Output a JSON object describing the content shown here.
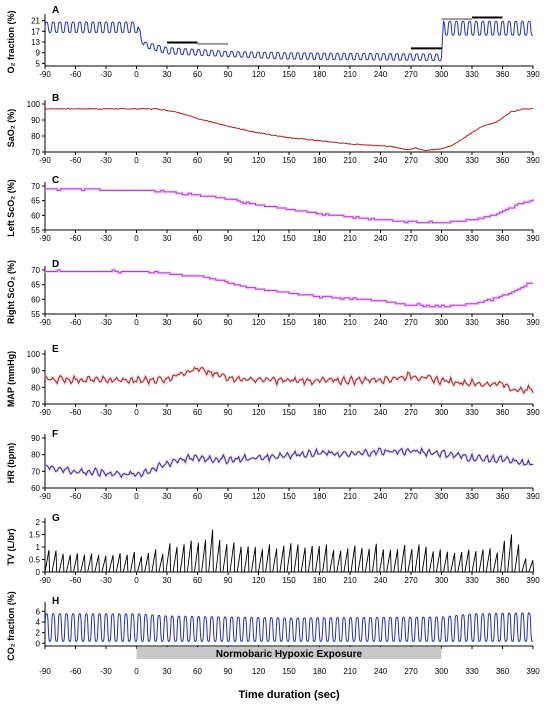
{
  "x_axis": {
    "label": "Time duration (sec)",
    "range": [
      -90,
      390
    ],
    "ticks": [
      -90,
      -60,
      -30,
      0,
      30,
      60,
      90,
      120,
      150,
      180,
      210,
      240,
      270,
      300,
      330,
      360,
      390
    ]
  },
  "exposure": {
    "label": "Normobaric Hypoxic Exposure",
    "start": 0,
    "end": 300,
    "color": "#c8c8c8"
  },
  "chart_data": [
    {
      "panel": "A",
      "type": "line",
      "ylabel": "O₂ fraction (%)",
      "color": "#1f2fbf",
      "ylim": [
        4,
        22
      ],
      "yticks": [
        5,
        9,
        13,
        17,
        21
      ],
      "series": [
        {
          "style": "oscillating",
          "period": 6.5,
          "peaks": [
            [
              -90,
              20.5
            ],
            [
              0,
              20.5
            ],
            [
              8,
              13
            ],
            [
              30,
              11
            ],
            [
              90,
              9.5
            ],
            [
              150,
              9
            ],
            [
              300,
              8.5
            ],
            [
              302,
              20.8
            ],
            [
              390,
              20.8
            ]
          ],
          "troughs": [
            [
              -90,
              16.5
            ],
            [
              0,
              16.5
            ],
            [
              8,
              11
            ],
            [
              30,
              8.5
            ],
            [
              90,
              7.5
            ],
            [
              150,
              6.5
            ],
            [
              300,
              6
            ],
            [
              302,
              15.5
            ],
            [
              390,
              15.5
            ]
          ]
        }
      ],
      "markers": [
        {
          "x": [
            30,
            60
          ],
          "y": 12.8,
          "color": "#000000"
        },
        {
          "x": [
            60,
            90
          ],
          "y": 12.3,
          "color": "#999999"
        },
        {
          "x": [
            270,
            300
          ],
          "y": 10.6,
          "color": "#000000"
        },
        {
          "x": [
            300,
            330
          ],
          "y": 21.6,
          "color": "#999999"
        },
        {
          "x": [
            330,
            360
          ],
          "y": 22.2,
          "color": "#000000"
        }
      ]
    },
    {
      "panel": "B",
      "type": "line",
      "ylabel": "SaO₂ (%)",
      "color": "#b22222",
      "ylim": [
        70,
        100
      ],
      "yticks": [
        70,
        80,
        90,
        100
      ],
      "series": [
        {
          "style": "smooth",
          "points": [
            [
              -90,
              97
            ],
            [
              0,
              97
            ],
            [
              20,
              97
            ],
            [
              40,
              95
            ],
            [
              60,
              91
            ],
            [
              90,
              86
            ],
            [
              120,
              82
            ],
            [
              150,
              79
            ],
            [
              180,
              77
            ],
            [
              210,
              75
            ],
            [
              240,
              74
            ],
            [
              255,
              73
            ],
            [
              265,
              71.5
            ],
            [
              275,
              72.5
            ],
            [
              285,
              71
            ],
            [
              300,
              72
            ],
            [
              310,
              74
            ],
            [
              325,
              80
            ],
            [
              340,
              86
            ],
            [
              355,
              89
            ],
            [
              368,
              95
            ],
            [
              380,
              97
            ],
            [
              390,
              97
            ]
          ]
        }
      ]
    },
    {
      "panel": "C",
      "type": "line",
      "ylabel": "Left ScO₂ (%)",
      "color": "#b038e0",
      "ylim": [
        55,
        70
      ],
      "yticks": [
        55,
        60,
        65,
        70
      ],
      "series": [
        {
          "style": "step",
          "points": [
            [
              -90,
              69
            ],
            [
              0,
              68.6
            ],
            [
              30,
              68
            ],
            [
              60,
              67
            ],
            [
              90,
              65.5
            ],
            [
              120,
              63.5
            ],
            [
              150,
              62
            ],
            [
              180,
              60.5
            ],
            [
              210,
              59.5
            ],
            [
              240,
              58.5
            ],
            [
              270,
              57.8
            ],
            [
              300,
              57.5
            ],
            [
              330,
              58.5
            ],
            [
              350,
              60
            ],
            [
              360,
              61.5
            ],
            [
              375,
              64
            ],
            [
              390,
              65
            ]
          ]
        }
      ]
    },
    {
      "panel": "D",
      "type": "line",
      "ylabel": "Right ScO₂ (%)",
      "color": "#b038e0",
      "ylim": [
        55,
        70
      ],
      "yticks": [
        55,
        60,
        65,
        70
      ],
      "series": [
        {
          "style": "step",
          "points": [
            [
              -90,
              69.5
            ],
            [
              0,
              69.5
            ],
            [
              30,
              68.8
            ],
            [
              60,
              68
            ],
            [
              90,
              65.5
            ],
            [
              120,
              63.5
            ],
            [
              150,
              62
            ],
            [
              180,
              61
            ],
            [
              210,
              60.2
            ],
            [
              240,
              59.5
            ],
            [
              270,
              58
            ],
            [
              300,
              57.5
            ],
            [
              330,
              58.5
            ],
            [
              350,
              60
            ],
            [
              365,
              62
            ],
            [
              380,
              64.5
            ],
            [
              390,
              66
            ]
          ]
        }
      ]
    },
    {
      "panel": "E",
      "type": "line",
      "ylabel": "MAP (mmHg)",
      "color": "#a02828",
      "ylim": [
        70,
        100
      ],
      "yticks": [
        70,
        80,
        90,
        100
      ],
      "series": [
        {
          "style": "noisy",
          "points": [
            [
              -90,
              85
            ],
            [
              0,
              84
            ],
            [
              30,
              85
            ],
            [
              45,
              89
            ],
            [
              60,
              91
            ],
            [
              75,
              88
            ],
            [
              100,
              85
            ],
            [
              150,
              84
            ],
            [
              200,
              84
            ],
            [
              250,
              85
            ],
            [
              270,
              87
            ],
            [
              300,
              84
            ],
            [
              340,
              82
            ],
            [
              360,
              82
            ],
            [
              375,
              78
            ],
            [
              390,
              79
            ]
          ]
        }
      ]
    },
    {
      "panel": "F",
      "type": "line",
      "ylabel": "HR (bpm)",
      "color": "#1f2fbf",
      "ylim": [
        60,
        90
      ],
      "yticks": [
        60,
        70,
        80,
        90
      ],
      "series": [
        {
          "style": "noisy",
          "points": [
            [
              -90,
              73
            ],
            [
              -60,
              70
            ],
            [
              -30,
              69
            ],
            [
              0,
              68
            ],
            [
              20,
              72
            ],
            [
              40,
              77
            ],
            [
              60,
              78
            ],
            [
              90,
              77
            ],
            [
              120,
              78
            ],
            [
              150,
              80
            ],
            [
              180,
              81
            ],
            [
              210,
              80
            ],
            [
              240,
              82
            ],
            [
              270,
              82
            ],
            [
              300,
              81
            ],
            [
              330,
              78
            ],
            [
              360,
              77
            ],
            [
              390,
              74
            ]
          ]
        }
      ]
    },
    {
      "panel": "G",
      "type": "line",
      "ylabel": "TV (L/br)",
      "color": "#000000",
      "ylim": [
        0,
        2.0
      ],
      "yticks": [
        0,
        0.5,
        1.0,
        1.5,
        2.0
      ],
      "series": [
        {
          "style": "pulses",
          "period": 7,
          "peak_points": [
            [
              -90,
              0.8
            ],
            [
              0,
              0.7
            ],
            [
              30,
              0.9
            ],
            [
              60,
              1.2
            ],
            [
              90,
              1.1
            ],
            [
              150,
              1.0
            ],
            [
              210,
              1.0
            ],
            [
              270,
              1.0
            ],
            [
              300,
              0.9
            ],
            [
              330,
              0.8
            ],
            [
              360,
              0.9
            ],
            [
              380,
              0.5
            ],
            [
              390,
              0.5
            ]
          ],
          "spikes": [
            [
              30,
              1.15
            ],
            [
              68,
              1.7
            ],
            [
              356,
              1.25
            ],
            [
              362,
              1.5
            ],
            [
              370,
              1.1
            ]
          ]
        }
      ]
    },
    {
      "panel": "H",
      "type": "line",
      "ylabel": "CO₂ fraction (%)",
      "color": "#1f2fbf",
      "ylim": [
        -0.5,
        7
      ],
      "yticks": [
        0,
        2,
        4,
        6
      ],
      "series": [
        {
          "style": "oscillating",
          "period": 6.5,
          "peaks": [
            [
              -90,
              5.6
            ],
            [
              0,
              5.6
            ],
            [
              30,
              5.2
            ],
            [
              150,
              4.8
            ],
            [
              300,
              5.0
            ],
            [
              330,
              5.6
            ],
            [
              390,
              5.8
            ]
          ],
          "troughs": [
            [
              -90,
              0.3
            ],
            [
              390,
              0.3
            ]
          ]
        }
      ]
    }
  ]
}
